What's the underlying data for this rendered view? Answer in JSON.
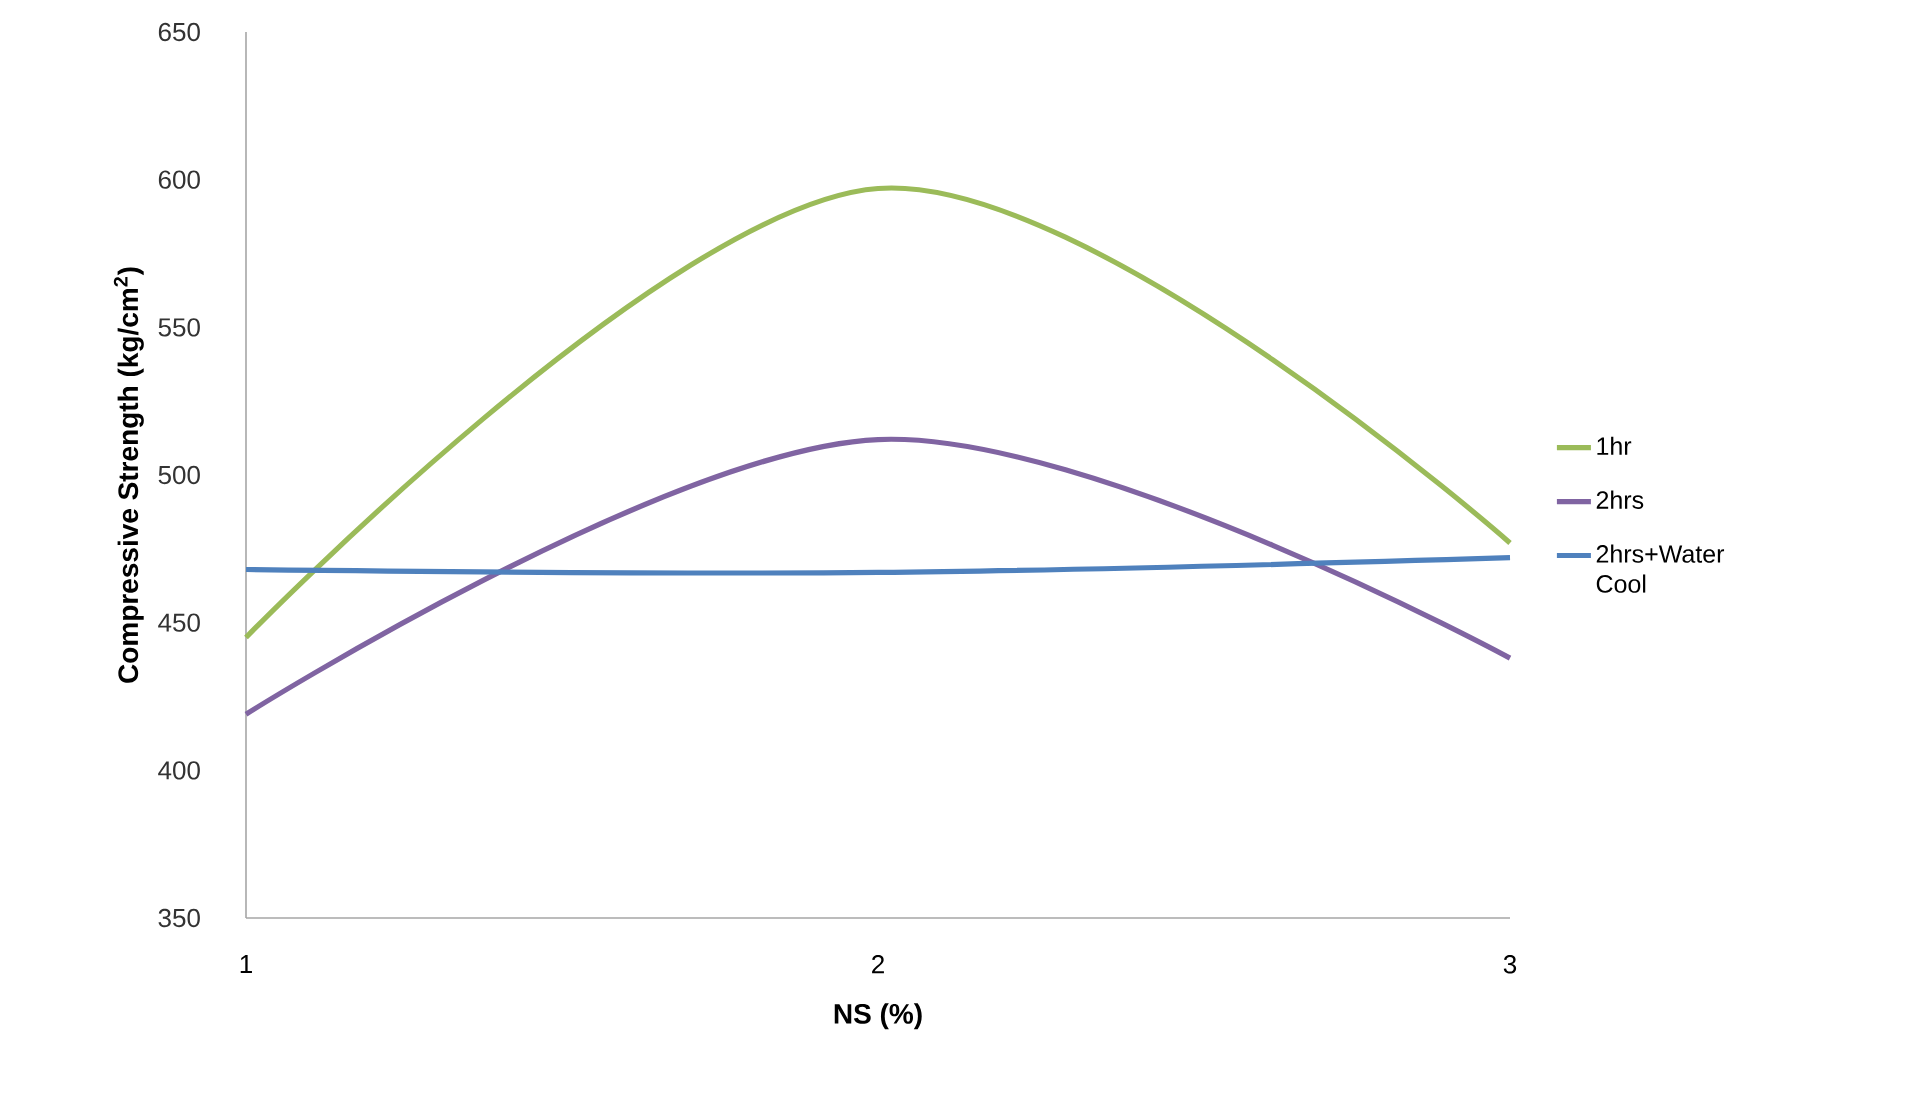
{
  "chart_data": {
    "type": "line",
    "xlabel": "NS (%)",
    "ylabel": "Compressive Strength (kg/cm$^{2}$)",
    "x": [
      1,
      2,
      3
    ],
    "xlim": [
      1,
      3
    ],
    "xticks": [
      1,
      2,
      3
    ],
    "ylim": [
      350,
      650
    ],
    "yticks": [
      350,
      400,
      450,
      500,
      550,
      600,
      650
    ],
    "series": [
      {
        "name": "1hr",
        "color": "#9bbb59",
        "values": [
          445,
          597,
          477
        ]
      },
      {
        "name": "2hrs",
        "color": "#8064a2",
        "values": [
          419,
          512,
          438
        ]
      },
      {
        "name": "2hrs+Water Cool",
        "color": "#4f81bd",
        "values": [
          468,
          467,
          472
        ]
      }
    ],
    "grid": false,
    "legend": "right",
    "marker": "none",
    "line_style": "solid"
  }
}
